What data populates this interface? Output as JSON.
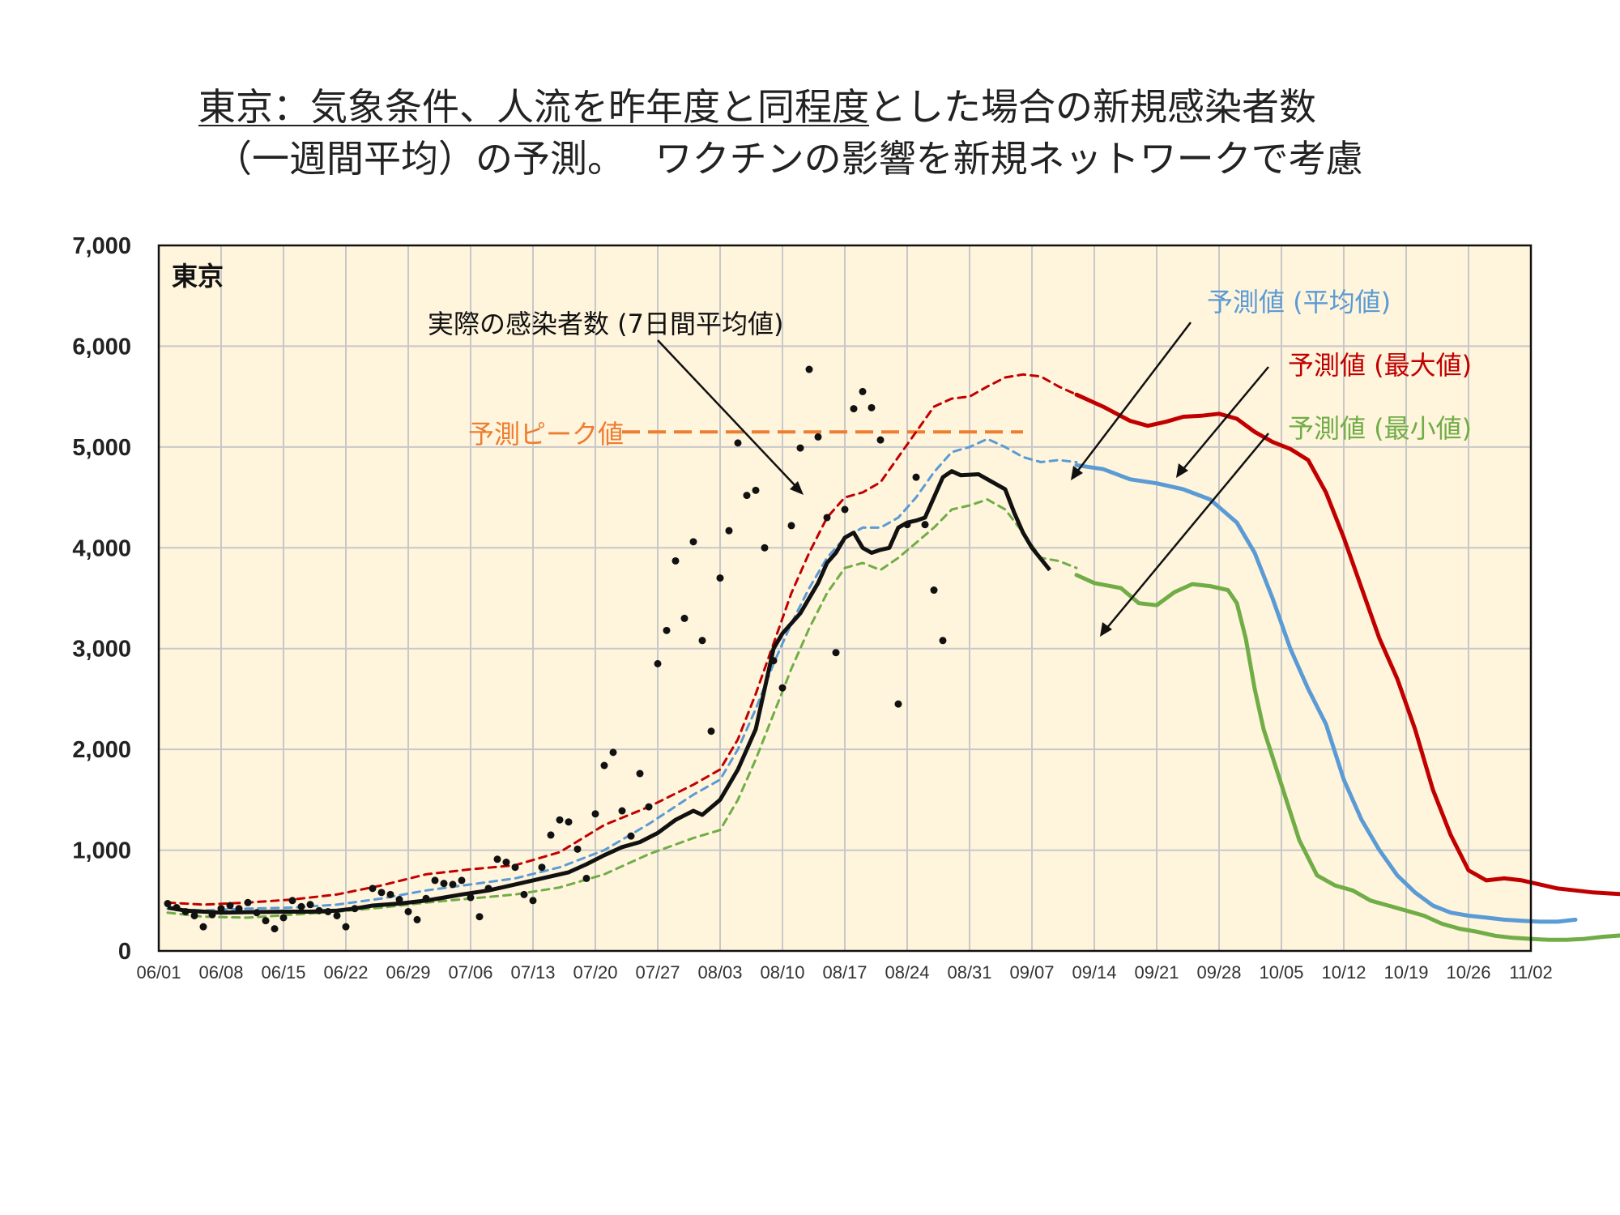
{
  "title": {
    "line1_underlined": "東京：気象条件、人流を昨年度と同程度",
    "line1_rest": "とした場合の新規感染者数",
    "line2": "（一週間平均）の予測。　 ワクチンの影響を新規ネットワークで考慮"
  },
  "chart_data": {
    "type": "line",
    "panel_label": "東京",
    "ylim": [
      0,
      7000
    ],
    "y_ticks": [
      "0",
      "1,000",
      "2,000",
      "3,000",
      "4,000",
      "5,000",
      "6,000",
      "7,000"
    ],
    "x_ticks": [
      "06/01",
      "06/08",
      "06/15",
      "06/22",
      "06/29",
      "07/06",
      "07/13",
      "07/20",
      "07/27",
      "08/03",
      "08/10",
      "08/17",
      "08/24",
      "08/31",
      "09/07",
      "09/14",
      "09/21",
      "09/28",
      "10/05",
      "10/12",
      "10/19",
      "10/26",
      "11/02"
    ],
    "x_range_days": [
      0,
      154
    ],
    "annotations": {
      "actual": "実際の感染者数 (7日間平均値)",
      "peak": "予測ピーク値",
      "avg": "予測値 (平均値)",
      "max": "予測値 (最大値)",
      "min": "予測値 (最小値)"
    },
    "colors": {
      "actual": "#111111",
      "avg": "#5b9bd5",
      "max": "#c00000",
      "min": "#70ad47",
      "peak": "#ed7d31",
      "background": "#fff4dc",
      "grid": "#c8c8c8"
    },
    "peak_value": 5150,
    "peak_range_days": [
      52,
      97
    ],
    "series": [
      {
        "key": "actual_avg",
        "points": [
          [
            1,
            430
          ],
          [
            3,
            400
          ],
          [
            5,
            390
          ],
          [
            7,
            380
          ],
          [
            10,
            385
          ],
          [
            14,
            390
          ],
          [
            17,
            390
          ],
          [
            20,
            400
          ],
          [
            22,
            420
          ],
          [
            24,
            450
          ],
          [
            27,
            470
          ],
          [
            30,
            500
          ],
          [
            32,
            530
          ],
          [
            34,
            560
          ],
          [
            37,
            600
          ],
          [
            40,
            660
          ],
          [
            43,
            720
          ],
          [
            46,
            780
          ],
          [
            48,
            860
          ],
          [
            50,
            950
          ],
          [
            52,
            1030
          ],
          [
            54,
            1080
          ],
          [
            56,
            1170
          ],
          [
            58,
            1300
          ],
          [
            60,
            1390
          ],
          [
            61,
            1350
          ],
          [
            63,
            1500
          ],
          [
            65,
            1800
          ],
          [
            67,
            2200
          ],
          [
            68,
            2600
          ],
          [
            69,
            3000
          ],
          [
            70,
            3150
          ],
          [
            72,
            3350
          ],
          [
            74,
            3650
          ],
          [
            75,
            3850
          ],
          [
            76,
            3950
          ],
          [
            77,
            4100
          ],
          [
            78,
            4150
          ],
          [
            79,
            4000
          ],
          [
            80,
            3950
          ],
          [
            81,
            3980
          ],
          [
            82,
            4000
          ],
          [
            83,
            4200
          ],
          [
            84,
            4250
          ],
          [
            85,
            4270
          ],
          [
            86,
            4300
          ],
          [
            87,
            4500
          ],
          [
            88,
            4700
          ],
          [
            89,
            4760
          ],
          [
            90,
            4720
          ],
          [
            92,
            4730
          ],
          [
            93,
            4680
          ],
          [
            95,
            4580
          ],
          [
            96,
            4350
          ],
          [
            97,
            4150
          ],
          [
            98,
            4000
          ],
          [
            100,
            3780
          ]
        ]
      },
      {
        "key": "avg_dashed",
        "points": [
          [
            1,
            420
          ],
          [
            5,
            400
          ],
          [
            10,
            420
          ],
          [
            15,
            430
          ],
          [
            20,
            460
          ],
          [
            25,
            520
          ],
          [
            30,
            600
          ],
          [
            35,
            660
          ],
          [
            40,
            720
          ],
          [
            45,
            830
          ],
          [
            50,
            1000
          ],
          [
            55,
            1260
          ],
          [
            60,
            1550
          ],
          [
            63,
            1700
          ],
          [
            65,
            2000
          ],
          [
            67,
            2400
          ],
          [
            69,
            2850
          ],
          [
            71,
            3250
          ],
          [
            73,
            3600
          ],
          [
            75,
            3900
          ],
          [
            77,
            4100
          ],
          [
            79,
            4200
          ],
          [
            81,
            4200
          ],
          [
            83,
            4300
          ],
          [
            85,
            4500
          ],
          [
            87,
            4750
          ],
          [
            89,
            4950
          ],
          [
            91,
            5000
          ],
          [
            93,
            5080
          ],
          [
            95,
            5000
          ],
          [
            97,
            4900
          ],
          [
            99,
            4850
          ],
          [
            101,
            4870
          ],
          [
            103,
            4850
          ]
        ]
      },
      {
        "key": "avg_solid",
        "points": [
          [
            103,
            4820
          ],
          [
            106,
            4780
          ],
          [
            109,
            4680
          ],
          [
            112,
            4640
          ],
          [
            115,
            4580
          ],
          [
            118,
            4480
          ],
          [
            121,
            4250
          ],
          [
            123,
            3950
          ],
          [
            125,
            3500
          ],
          [
            127,
            3000
          ],
          [
            129,
            2600
          ],
          [
            131,
            2250
          ],
          [
            133,
            1700
          ],
          [
            135,
            1300
          ],
          [
            137,
            1000
          ],
          [
            139,
            750
          ],
          [
            141,
            580
          ],
          [
            143,
            450
          ],
          [
            145,
            380
          ],
          [
            147,
            350
          ],
          [
            149,
            330
          ],
          [
            151,
            310
          ],
          [
            153,
            300
          ],
          [
            155,
            290
          ],
          [
            157,
            290
          ],
          [
            159,
            310
          ]
        ]
      },
      {
        "key": "max_dashed",
        "points": [
          [
            1,
            480
          ],
          [
            5,
            460
          ],
          [
            10,
            480
          ],
          [
            15,
            510
          ],
          [
            20,
            560
          ],
          [
            25,
            650
          ],
          [
            30,
            760
          ],
          [
            35,
            810
          ],
          [
            40,
            850
          ],
          [
            45,
            980
          ],
          [
            50,
            1250
          ],
          [
            55,
            1430
          ],
          [
            60,
            1650
          ],
          [
            63,
            1800
          ],
          [
            65,
            2100
          ],
          [
            67,
            2550
          ],
          [
            69,
            3050
          ],
          [
            71,
            3550
          ],
          [
            73,
            3950
          ],
          [
            75,
            4300
          ],
          [
            77,
            4500
          ],
          [
            79,
            4550
          ],
          [
            81,
            4650
          ],
          [
            83,
            4900
          ],
          [
            85,
            5150
          ],
          [
            87,
            5400
          ],
          [
            89,
            5480
          ],
          [
            91,
            5500
          ],
          [
            93,
            5600
          ],
          [
            95,
            5690
          ],
          [
            97,
            5720
          ],
          [
            99,
            5700
          ],
          [
            101,
            5600
          ],
          [
            103,
            5520
          ]
        ]
      },
      {
        "key": "max_solid",
        "points": [
          [
            103,
            5520
          ],
          [
            106,
            5400
          ],
          [
            109,
            5260
          ],
          [
            111,
            5210
          ],
          [
            113,
            5250
          ],
          [
            115,
            5300
          ],
          [
            117,
            5310
          ],
          [
            119,
            5330
          ],
          [
            121,
            5280
          ],
          [
            123,
            5150
          ],
          [
            125,
            5050
          ],
          [
            127,
            4980
          ],
          [
            129,
            4870
          ],
          [
            131,
            4550
          ],
          [
            133,
            4100
          ],
          [
            135,
            3600
          ],
          [
            137,
            3100
          ],
          [
            139,
            2700
          ],
          [
            141,
            2200
          ],
          [
            143,
            1600
          ],
          [
            145,
            1150
          ],
          [
            147,
            800
          ],
          [
            149,
            700
          ],
          [
            151,
            720
          ],
          [
            153,
            700
          ],
          [
            155,
            660
          ],
          [
            157,
            620
          ],
          [
            159,
            600
          ],
          [
            161,
            580
          ],
          [
            163,
            570
          ],
          [
            165,
            560
          ]
        ]
      },
      {
        "key": "min_dashed",
        "points": [
          [
            1,
            380
          ],
          [
            5,
            340
          ],
          [
            10,
            330
          ],
          [
            15,
            360
          ],
          [
            20,
            390
          ],
          [
            25,
            430
          ],
          [
            30,
            480
          ],
          [
            35,
            520
          ],
          [
            40,
            560
          ],
          [
            45,
            630
          ],
          [
            50,
            760
          ],
          [
            55,
            960
          ],
          [
            60,
            1120
          ],
          [
            63,
            1200
          ],
          [
            65,
            1500
          ],
          [
            67,
            1900
          ],
          [
            69,
            2350
          ],
          [
            71,
            2800
          ],
          [
            73,
            3200
          ],
          [
            75,
            3550
          ],
          [
            77,
            3800
          ],
          [
            79,
            3850
          ],
          [
            81,
            3780
          ],
          [
            83,
            3900
          ],
          [
            85,
            4050
          ],
          [
            87,
            4200
          ],
          [
            89,
            4380
          ],
          [
            91,
            4420
          ],
          [
            93,
            4480
          ],
          [
            95,
            4380
          ],
          [
            97,
            4150
          ],
          [
            99,
            3900
          ],
          [
            101,
            3870
          ],
          [
            103,
            3800
          ]
        ]
      },
      {
        "key": "min_solid",
        "points": [
          [
            103,
            3730
          ],
          [
            105,
            3650
          ],
          [
            108,
            3600
          ],
          [
            110,
            3450
          ],
          [
            112,
            3430
          ],
          [
            114,
            3560
          ],
          [
            116,
            3640
          ],
          [
            118,
            3620
          ],
          [
            120,
            3580
          ],
          [
            121,
            3450
          ],
          [
            122,
            3100
          ],
          [
            123,
            2600
          ],
          [
            124,
            2200
          ],
          [
            126,
            1650
          ],
          [
            128,
            1100
          ],
          [
            130,
            750
          ],
          [
            132,
            650
          ],
          [
            134,
            600
          ],
          [
            136,
            500
          ],
          [
            138,
            450
          ],
          [
            140,
            400
          ],
          [
            142,
            350
          ],
          [
            144,
            270
          ],
          [
            146,
            220
          ],
          [
            148,
            190
          ],
          [
            150,
            150
          ],
          [
            152,
            130
          ],
          [
            154,
            120
          ],
          [
            156,
            110
          ],
          [
            158,
            110
          ],
          [
            160,
            120
          ],
          [
            162,
            140
          ],
          [
            165,
            160
          ]
        ]
      }
    ],
    "points": [
      [
        1,
        470
      ],
      [
        2,
        430
      ],
      [
        3,
        390
      ],
      [
        4,
        350
      ],
      [
        5,
        240
      ],
      [
        6,
        360
      ],
      [
        7,
        420
      ],
      [
        8,
        450
      ],
      [
        9,
        420
      ],
      [
        10,
        480
      ],
      [
        11,
        380
      ],
      [
        12,
        300
      ],
      [
        13,
        220
      ],
      [
        14,
        330
      ],
      [
        15,
        500
      ],
      [
        16,
        440
      ],
      [
        17,
        460
      ],
      [
        18,
        400
      ],
      [
        19,
        390
      ],
      [
        20,
        350
      ],
      [
        21,
        240
      ],
      [
        22,
        420
      ],
      [
        24,
        620
      ],
      [
        25,
        580
      ],
      [
        26,
        560
      ],
      [
        27,
        510
      ],
      [
        28,
        390
      ],
      [
        29,
        310
      ],
      [
        30,
        520
      ],
      [
        31,
        700
      ],
      [
        32,
        670
      ],
      [
        33,
        660
      ],
      [
        34,
        700
      ],
      [
        35,
        530
      ],
      [
        36,
        340
      ],
      [
        37,
        620
      ],
      [
        38,
        910
      ],
      [
        39,
        880
      ],
      [
        40,
        830
      ],
      [
        41,
        560
      ],
      [
        42,
        500
      ],
      [
        43,
        830
      ],
      [
        44,
        1150
      ],
      [
        45,
        1300
      ],
      [
        46,
        1280
      ],
      [
        47,
        1010
      ],
      [
        48,
        720
      ],
      [
        49,
        1360
      ],
      [
        50,
        1840
      ],
      [
        51,
        1970
      ],
      [
        52,
        1390
      ],
      [
        53,
        1140
      ],
      [
        54,
        1760
      ],
      [
        55,
        1430
      ],
      [
        56,
        2850
      ],
      [
        57,
        3180
      ],
      [
        58,
        3870
      ],
      [
        59,
        3300
      ],
      [
        60,
        4060
      ],
      [
        61,
        3080
      ],
      [
        62,
        2180
      ],
      [
        63,
        3700
      ],
      [
        64,
        4170
      ],
      [
        65,
        5040
      ],
      [
        66,
        4520
      ],
      [
        67,
        4570
      ],
      [
        68,
        4000
      ],
      [
        69,
        2880
      ],
      [
        70,
        2610
      ],
      [
        71,
        4220
      ],
      [
        72,
        4990
      ],
      [
        73,
        5770
      ],
      [
        74,
        5100
      ],
      [
        75,
        4300
      ],
      [
        76,
        2960
      ],
      [
        77,
        4380
      ],
      [
        78,
        5380
      ],
      [
        79,
        5550
      ],
      [
        80,
        5390
      ],
      [
        81,
        5070
      ],
      [
        83,
        2450
      ],
      [
        84,
        4230
      ],
      [
        85,
        4700
      ],
      [
        86,
        4230
      ],
      [
        87,
        3580
      ],
      [
        88,
        3080
      ]
    ]
  }
}
